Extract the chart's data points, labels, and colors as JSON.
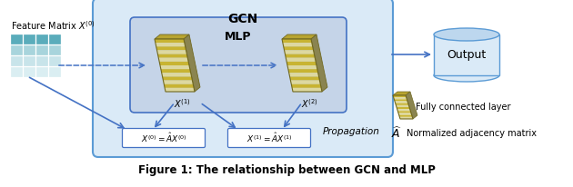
{
  "bg_color": "#ffffff",
  "gcn_box_color": "#daeaf7",
  "gcn_box_edge": "#5b9bd5",
  "mlp_box_color": "#c5d4e8",
  "mlp_box_edge": "#4472c4",
  "eq_box_color": "#ffffff",
  "eq_box_edge": "#4472c4",
  "arrow_color": "#4472c4",
  "dashed_color": "#4472c4",
  "layer_face": "#ddd8a0",
  "layer_stripe": "#c8b432",
  "layer_top": "#b8a430",
  "layer_back": "#8a8450",
  "layer_edge": "#706820",
  "feat_dark": "#5aacbb",
  "feat_mid": "#a8d4dc",
  "feat_light1": "#c8e4ea",
  "feat_light2": "#daeef2",
  "cyl_body": "#daeaf7",
  "cyl_top": "#bdd7ee",
  "cyl_edge": "#5b9bd5",
  "gcn_label": "GCN",
  "mlp_label": "MLP",
  "output_label": "Output",
  "propagation_label": "Propagation",
  "fc_label": "Fully connected layer",
  "norm_label": "Normalized adjacency matrix",
  "caption": "Figure 1: The relationship between GCN and MLP"
}
